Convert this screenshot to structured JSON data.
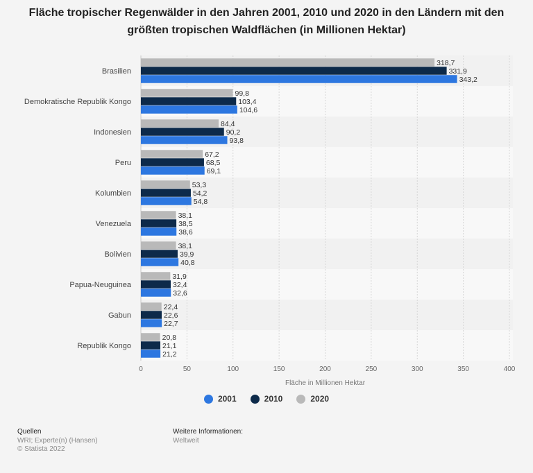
{
  "title": "Fläche tropischer Regenwälder in den Jahren 2001, 2010 und 2020 in den Ländern mit den größten tropischen Waldflächen (in Millionen Hektar)",
  "chart_data": {
    "type": "bar",
    "orientation": "horizontal",
    "categories": [
      "Brasilien",
      "Demokratische Republik Kongo",
      "Indonesien",
      "Peru",
      "Kolumbien",
      "Venezuela",
      "Bolivien",
      "Papua-Neuguinea",
      "Gabun",
      "Republik Kongo"
    ],
    "series": [
      {
        "name": "2020",
        "color": "#b9b9b9",
        "values": [
          318.7,
          99.8,
          84.4,
          67.2,
          53.3,
          38.1,
          38.1,
          31.9,
          22.4,
          20.8
        ],
        "labels": [
          "318,7",
          "99,8",
          "84,4",
          "67,2",
          "53,3",
          "38,1",
          "38,1",
          "31,9",
          "22,4",
          "20,8"
        ]
      },
      {
        "name": "2010",
        "color": "#0d2a4a",
        "values": [
          331.9,
          103.4,
          90.2,
          68.5,
          54.2,
          38.5,
          39.9,
          32.4,
          22.6,
          21.1
        ],
        "labels": [
          "331,9",
          "103,4",
          "90,2",
          "68,5",
          "54,2",
          "38,5",
          "39,9",
          "32,4",
          "22,6",
          "21,1"
        ]
      },
      {
        "name": "2001",
        "color": "#2d77e0",
        "values": [
          343.2,
          104.6,
          93.8,
          69.1,
          54.8,
          38.6,
          40.8,
          32.6,
          22.7,
          21.2
        ],
        "labels": [
          "343,2",
          "104,6",
          "93,8",
          "69,1",
          "54,8",
          "38,6",
          "40,8",
          "32,6",
          "22,7",
          "21,2"
        ]
      }
    ],
    "xlim": [
      0,
      400
    ],
    "ticks": [
      0,
      50,
      100,
      150,
      200,
      250,
      300,
      350,
      400
    ],
    "xlabel": "Fläche in Millionen Hektar",
    "ylabel": "",
    "grid": true
  },
  "legend": [
    {
      "label": "2001",
      "color": "#2d77e0"
    },
    {
      "label": "2010",
      "color": "#0d2a4a"
    },
    {
      "label": "2020",
      "color": "#b9b9b9"
    }
  ],
  "footer": {
    "sources_heading": "Quellen",
    "sources_line1": "WRI; Experte(n) (Hansen)",
    "sources_line2": "© Statista 2022",
    "info_heading": "Weitere Informationen:",
    "info_line1": "Weltweit"
  }
}
